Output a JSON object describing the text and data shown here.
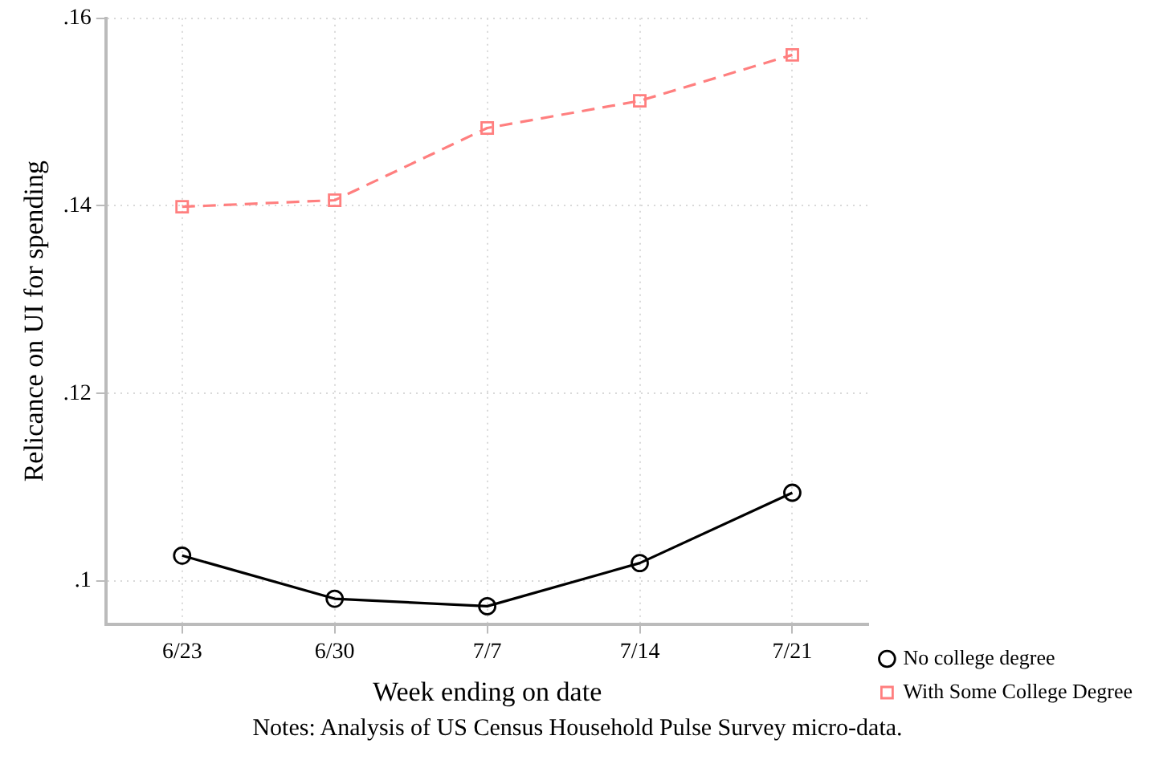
{
  "chart_data": {
    "type": "line",
    "xlabel": "Week ending on date",
    "ylabel": "Relicance on UI for spending",
    "categories": [
      "6/23",
      "6/30",
      "7/7",
      "7/14",
      "7/21"
    ],
    "series": [
      {
        "name": "No college degree",
        "color": "#000000",
        "values": [
          0.1027,
          0.0981,
          0.0973,
          0.1019,
          0.1094
        ],
        "marker": "circle",
        "line_style": "solid"
      },
      {
        "name": "With Some College Degree",
        "color": "#ff7f7f",
        "values": [
          0.1399,
          0.1406,
          0.1483,
          0.1512,
          0.1561
        ],
        "marker": "square",
        "line_style": "dashed"
      }
    ],
    "ylim": [
      0.0954,
      0.16
    ],
    "yticks": [
      {
        "value": 0.1,
        "label": ".1"
      },
      {
        "value": 0.12,
        "label": ".12"
      },
      {
        "value": 0.14,
        "label": ".14"
      },
      {
        "value": 0.16,
        "label": ".16"
      }
    ],
    "grid": true,
    "legend": "bottom right",
    "annotations": [
      "Notes: Analysis of US Census Household Pulse Survey micro-data."
    ]
  }
}
